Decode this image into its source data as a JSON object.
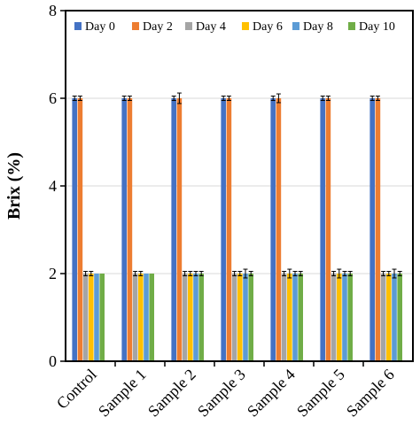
{
  "chart_data": {
    "type": "bar",
    "ylabel": "Brix (%)",
    "xlabel": "",
    "ylim": [
      0,
      8
    ],
    "yticks": [
      0,
      2,
      4,
      6,
      8
    ],
    "grid": "horizontal",
    "legend_position": "top",
    "categories": [
      "Control",
      "Sample 1",
      "Sample 2",
      "Sample 3",
      "Sample 4",
      "Sample 5",
      "Sample 6"
    ],
    "series": [
      {
        "name": "Day 0",
        "color": "#4472c4",
        "values": [
          6,
          6,
          6,
          6,
          6,
          6,
          6
        ],
        "errors": [
          0.05,
          0.05,
          0.05,
          0.05,
          0.05,
          0.05,
          0.05
        ]
      },
      {
        "name": "Day 2",
        "color": "#ed7d31",
        "values": [
          6,
          6,
          6,
          6,
          6,
          6,
          6
        ],
        "errors": [
          0.05,
          0.05,
          0.12,
          0.05,
          0.1,
          0.05,
          0.05
        ]
      },
      {
        "name": "Day 4",
        "color": "#a5a5a5",
        "values": [
          2,
          2,
          2,
          2,
          2,
          2,
          2
        ],
        "errors": [
          0.05,
          0.05,
          0.05,
          0.05,
          0.05,
          0.05,
          0.05
        ]
      },
      {
        "name": "Day 6",
        "color": "#ffc000",
        "values": [
          2,
          2,
          2,
          2,
          2,
          2,
          2
        ],
        "errors": [
          0.05,
          0.05,
          0.05,
          0.05,
          0.1,
          0.1,
          0.05
        ]
      },
      {
        "name": "Day 8",
        "color": "#5b9bd5",
        "values": [
          2,
          2,
          2,
          2,
          2,
          2,
          2
        ],
        "errors": [
          0.0,
          0.0,
          0.05,
          0.1,
          0.05,
          0.05,
          0.1
        ]
      },
      {
        "name": "Day 10",
        "color": "#70ad47",
        "values": [
          2,
          2,
          2,
          2,
          2,
          2,
          2
        ],
        "errors": [
          0.0,
          0.0,
          0.05,
          0.05,
          0.05,
          0.05,
          0.05
        ]
      }
    ]
  }
}
